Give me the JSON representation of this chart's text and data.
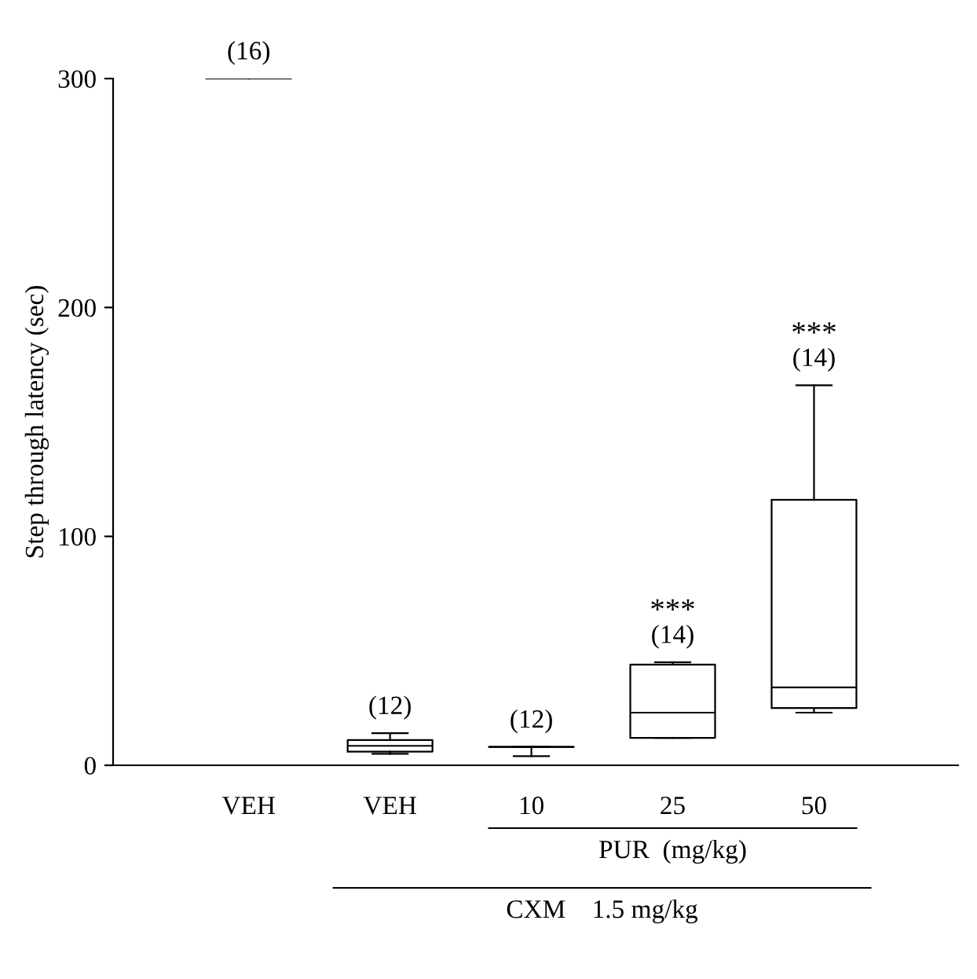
{
  "chart_data": {
    "type": "box",
    "ylabel": "Step through latency (sec)",
    "categories": [
      "VEH",
      "VEH",
      "10",
      "25",
      "50"
    ],
    "boxes": [
      {
        "low": 300,
        "q1": 300,
        "median": 300,
        "q3": 300,
        "high": 300
      },
      {
        "low": 5,
        "q1": 6,
        "median": 8.5,
        "q3": 11,
        "high": 14
      },
      {
        "low": 4,
        "q1": 8,
        "median": 8,
        "q3": 8,
        "high": 8
      },
      {
        "low": 12,
        "q1": 12,
        "median": 23,
        "q3": 44,
        "high": 45
      },
      {
        "low": 23,
        "q1": 25,
        "median": 34,
        "q3": 116,
        "high": 166
      }
    ],
    "value_labels": [
      "(16)",
      "(12)",
      "(12)",
      "(14)",
      "(14)"
    ],
    "annotations": [
      "***",
      "***",
      "PUR  (mg/kg)",
      "CXM    1.5 mg/kg"
    ],
    "ylim": [
      0,
      300
    ],
    "yticks": [
      0,
      100,
      200,
      300
    ],
    "grid": false,
    "legend": false
  }
}
